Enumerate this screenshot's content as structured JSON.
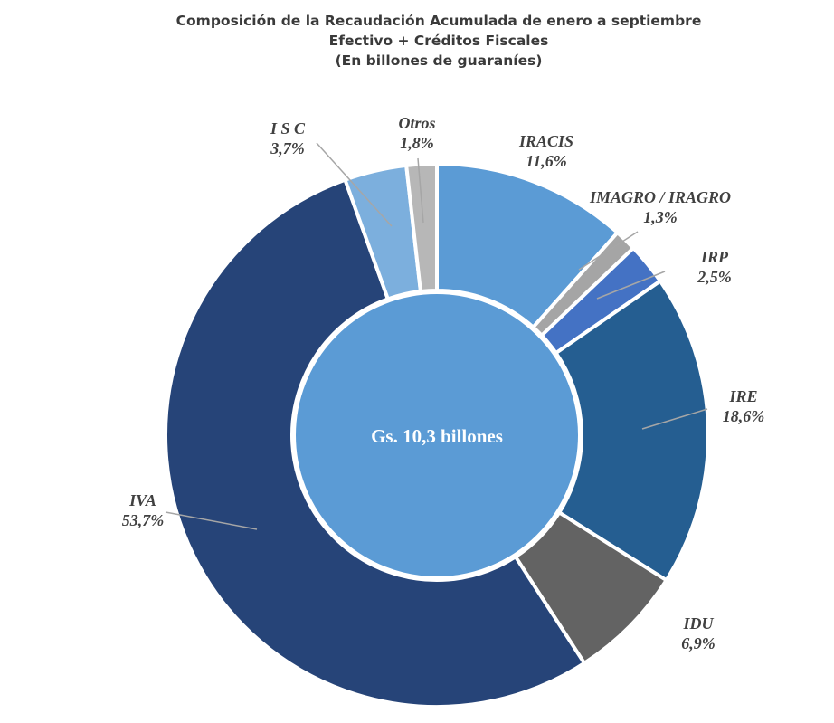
{
  "chart_data": {
    "type": "pie",
    "title": "Composición de la Recaudación Acumulada de enero a septiembre",
    "subtitle": "Efectivo + Créditos Fiscales",
    "units": "(En billones de guaraníes)",
    "center_label": "Gs. 10,3 billones",
    "slices": [
      {
        "name": "IRACIS",
        "value": 11.6,
        "label": "11,6%",
        "color": "#5b9bd5"
      },
      {
        "name": "IMAGRO / IRAGRO",
        "value": 1.3,
        "label": "1,3%",
        "color": "#a5a5a5"
      },
      {
        "name": "IRP",
        "value": 2.5,
        "label": "2,5%",
        "color": "#4472c4"
      },
      {
        "name": "IRE",
        "value": 18.6,
        "label": "18,6%",
        "color": "#255e91"
      },
      {
        "name": "IDU",
        "value": 6.9,
        "label": "6,9%",
        "color": "#636363"
      },
      {
        "name": "IVA",
        "value": 53.7,
        "label": "53,7%",
        "color": "#264478"
      },
      {
        "name": "I S C",
        "value": 3.7,
        "label": "3,7%",
        "color": "#7cafdd"
      },
      {
        "name": "Otros",
        "value": 1.8,
        "label": "1,8%",
        "color": "#b7b7b7"
      }
    ]
  }
}
